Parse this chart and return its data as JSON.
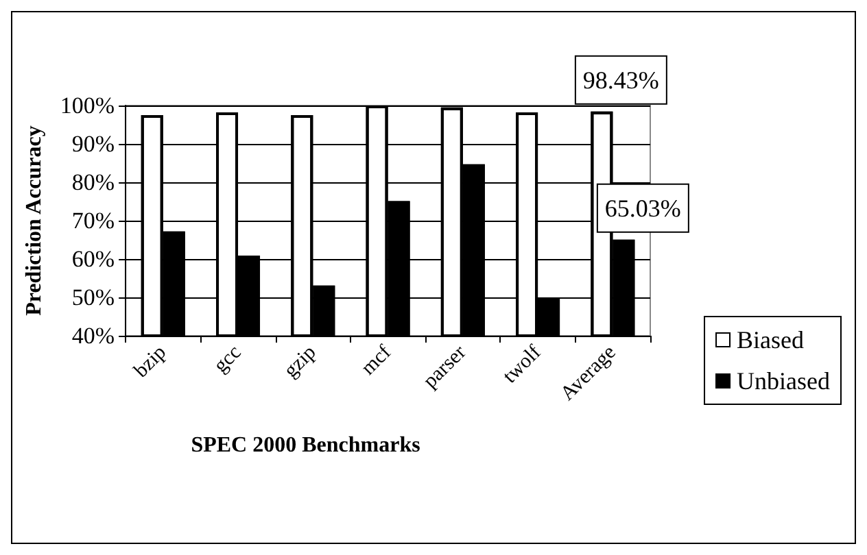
{
  "chart_data": {
    "type": "bar",
    "xlabel": "SPEC 2000 Benchmarks",
    "ylabel": "Prediction Accuracy",
    "categories": [
      "bzip",
      "gcc",
      "gzip",
      "mcf",
      "parser",
      "twolf",
      "Average"
    ],
    "series": [
      {
        "name": "Biased",
        "color": "#ffffff",
        "values": [
          97.5,
          98.2,
          97.5,
          100,
          99.5,
          98.2,
          98.43
        ],
        "value_labels": [
          null,
          null,
          null,
          null,
          null,
          null,
          "98.43%"
        ]
      },
      {
        "name": "Unbiased",
        "color": "#000000",
        "values": [
          67.2,
          60.9,
          53.1,
          75.1,
          84.7,
          50.0,
          65.03
        ],
        "value_labels": [
          null,
          null,
          null,
          null,
          null,
          null,
          "65.03%"
        ]
      }
    ],
    "ylim": [
      40,
      100
    ],
    "yticks": [
      {
        "value": 40,
        "label": "40%"
      },
      {
        "value": 50,
        "label": "50%"
      },
      {
        "value": 60,
        "label": "60%"
      },
      {
        "value": 70,
        "label": "70%"
      },
      {
        "value": 80,
        "label": "80%"
      },
      {
        "value": 90,
        "label": "90%"
      },
      {
        "value": 100,
        "label": "100%"
      }
    ],
    "grid": "y",
    "legend": "right"
  }
}
